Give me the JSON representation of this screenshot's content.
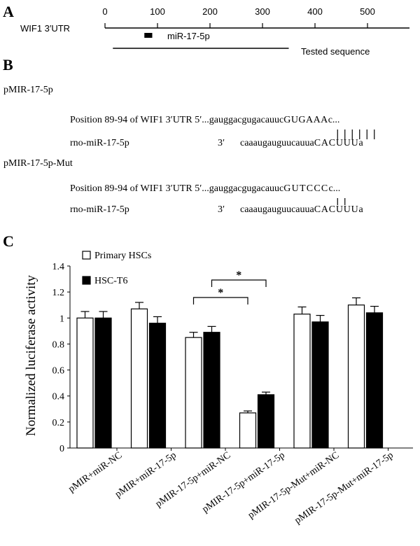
{
  "panel_a": {
    "letter": "A",
    "gene_label": "WIF1 3′UTR",
    "ticks": [
      "0",
      "100",
      "200",
      "300",
      "400",
      "500"
    ],
    "tick_values": [
      0,
      100,
      200,
      300,
      400,
      500
    ],
    "mirna_label": "miR-17-5p",
    "mirna_site": [
      75,
      90
    ],
    "tested_label": "Tested sequence",
    "tested_range": [
      15,
      350
    ]
  },
  "panel_b": {
    "letter": "B",
    "constructs": [
      {
        "name": "pMIR-17-5p",
        "utr_label": "Position 89-94 of WIF1 3′UTR  5′...",
        "utr_lower": "gauggacgugacauuc",
        "utr_upper": "GUGAAA",
        "utr_tail": "c...",
        "mir_label": "rno-miR-17-5p",
        "mir_end": "3′",
        "mir_lower": "caaaugauguucauua",
        "mir_upper": "CACUUU",
        "mir_tail": "a",
        "pair_count": 6
      },
      {
        "name": "pMIR-17-5p-Mut",
        "utr_label": "Position 89-94 of WIF1 3′UTR  5′...",
        "utr_lower": "gauggacgugacauuc",
        "utr_upper": "GUTCCC",
        "utr_tail": "c...",
        "mir_label": "rno-miR-17-5p",
        "mir_end": "3′",
        "mir_lower": "caaaugauguucauua",
        "mir_upper": "CACUUU",
        "mir_tail": "a",
        "pair_count": 2
      }
    ]
  },
  "panel_c": {
    "letter": "C",
    "significance_marker": "*"
  },
  "chart_data": {
    "type": "bar",
    "ylabel": "Normalized luciferase activity",
    "ylim": [
      0,
      1.4
    ],
    "yticks": [
      0,
      0.2,
      0.4,
      0.6,
      0.8,
      1,
      1.2,
      1.4
    ],
    "ytick_labels": [
      "0",
      "0.2",
      "0.4",
      "0.6",
      "0.8",
      "1",
      "1.2",
      "1.4"
    ],
    "categories": [
      "pMIR+miR-NC",
      "pMIR+miR-17-5p",
      "pMIR-17-5p+miR-NC",
      "pMIR-17-5p+miR-17-5p",
      "pMIR-17-5p-Mut+miR-NC",
      "pMIR-17-5p-Mut+miR-17-5p"
    ],
    "series": [
      {
        "name": "Primary HSCs",
        "fill": "#ffffff",
        "values": [
          1.0,
          1.07,
          0.85,
          0.27,
          1.03,
          1.1
        ],
        "errors": [
          0.05,
          0.05,
          0.04,
          0.015,
          0.055,
          0.055
        ]
      },
      {
        "name": "HSC-T6",
        "fill": "#000000",
        "values": [
          1.0,
          0.96,
          0.89,
          0.41,
          0.97,
          1.04
        ],
        "errors": [
          0.05,
          0.05,
          0.045,
          0.02,
          0.05,
          0.05
        ]
      }
    ],
    "legend_position": "top-left",
    "significance": [
      {
        "from_category": 2,
        "to_category": 3,
        "label": "*"
      },
      {
        "from_category": 2,
        "to_category": 3,
        "label": "*"
      }
    ],
    "bar_color_stroke": "#000000"
  }
}
